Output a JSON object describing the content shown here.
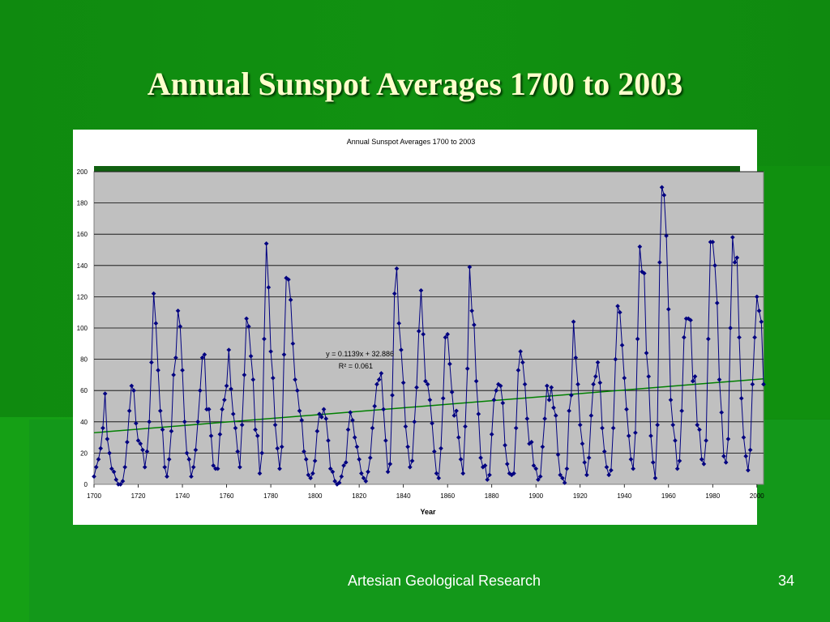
{
  "slide": {
    "title": "Annual Sunspot Averages 1700 to 2003",
    "footer": "Artesian Geological Research",
    "page_number": "34"
  },
  "colors": {
    "background": "#119111",
    "title_text": "#ffffcc",
    "plot_area": "#c0c0c0",
    "data_line": "#000080",
    "trend_line": "#008000",
    "gridline": "#000000"
  },
  "chart_data": {
    "type": "line",
    "title": "Annual Sunspot Averages 1700 to 2003",
    "xlabel": "Year",
    "ylabel": "",
    "xlim": [
      1700,
      2003
    ],
    "ylim": [
      0,
      200
    ],
    "x_ticks": [
      1700,
      1720,
      1740,
      1760,
      1780,
      1800,
      1820,
      1840,
      1860,
      1880,
      1900,
      1920,
      1940,
      1960,
      1980,
      2000
    ],
    "y_ticks": [
      0,
      20,
      40,
      60,
      80,
      100,
      120,
      140,
      160,
      180,
      200
    ],
    "grid": "horizontal",
    "legend": "none",
    "trendline": {
      "equation": "y = 0.1139x + 32.886",
      "r_squared": "R² = 0.061",
      "slope": 0.1139,
      "intercept": 32.886
    },
    "series": [
      {
        "x_start": 1700,
        "values": [
          5,
          11,
          16,
          23,
          36,
          58,
          29,
          20,
          10,
          8,
          3,
          0,
          0,
          2,
          11,
          27,
          47,
          63,
          60,
          39,
          28,
          26,
          22,
          11,
          21,
          40,
          78,
          122,
          103,
          73,
          47,
          35,
          11,
          5,
          16,
          34,
          70,
          81,
          111,
          101,
          73,
          40,
          20,
          16,
          5,
          11,
          22,
          40,
          60,
          81,
          83,
          48,
          48,
          31,
          12,
          10,
          10,
          32,
          48,
          54,
          63,
          86,
          61,
          45,
          36,
          21,
          11,
          38,
          70,
          106,
          101,
          82,
          67,
          35,
          31,
          7,
          20,
          93,
          154,
          126,
          85,
          68,
          38,
          23,
          10,
          24,
          83,
          132,
          131,
          118,
          90,
          67,
          60,
          47,
          41,
          21,
          16,
          6,
          4,
          7,
          15,
          34,
          45,
          43,
          48,
          42,
          28,
          10,
          8,
          2,
          0,
          1,
          5,
          12,
          14,
          35,
          46,
          41,
          30,
          24,
          16,
          7,
          4,
          2,
          8,
          17,
          36,
          50,
          64,
          67,
          71,
          48,
          28,
          8,
          13,
          57,
          122,
          138,
          103,
          86,
          65,
          37,
          24,
          11,
          15,
          40,
          62,
          98,
          124,
          96,
          66,
          64,
          54,
          39,
          21,
          7,
          4,
          23,
          55,
          94,
          96,
          77,
          59,
          44,
          47,
          30,
          16,
          7,
          37,
          74,
          139,
          111,
          102,
          66,
          45,
          17,
          11,
          12,
          3,
          6,
          32,
          54,
          60,
          64,
          63,
          52,
          25,
          13,
          7,
          6,
          7,
          36,
          73,
          85,
          78,
          64,
          42,
          26,
          27,
          12,
          10,
          3,
          5,
          24,
          42,
          63,
          54,
          62,
          49,
          44,
          19,
          6,
          4,
          1,
          10,
          47,
          57,
          104,
          81,
          64,
          38,
          26,
          14,
          6,
          17,
          44,
          64,
          69,
          78,
          65,
          36,
          21,
          11,
          6,
          9,
          36,
          80,
          114,
          110,
          89,
          68,
          48,
          31,
          16,
          10,
          33,
          93,
          152,
          136,
          135,
          84,
          69,
          31,
          14,
          4,
          38,
          142,
          190,
          185,
          159,
          112,
          54,
          38,
          28,
          10,
          15,
          47,
          94,
          106,
          106,
          105,
          66,
          69,
          38,
          35,
          16,
          13,
          28,
          93,
          155,
          155,
          140,
          116,
          67,
          46,
          18,
          14,
          29,
          100,
          158,
          142,
          145,
          94,
          55,
          30,
          18,
          9,
          22,
          64,
          94,
          120,
          111,
          104,
          64
        ]
      }
    ]
  }
}
